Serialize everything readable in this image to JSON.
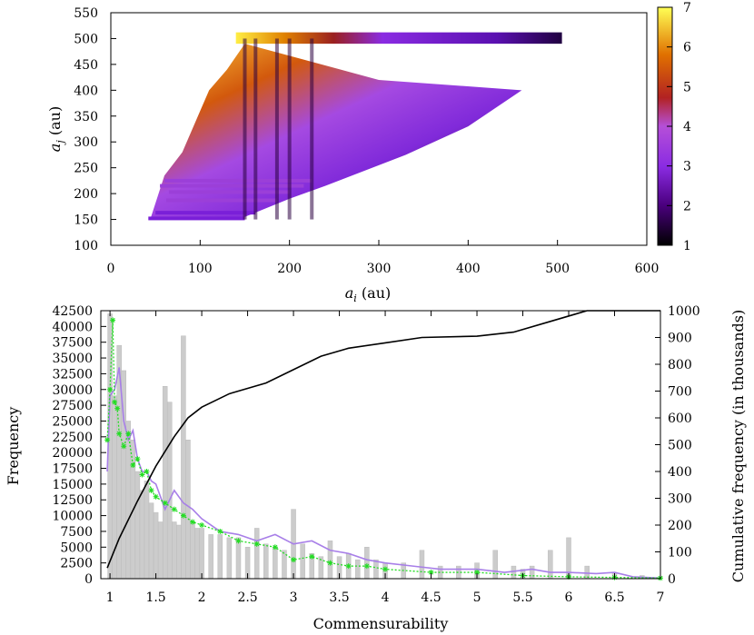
{
  "chart_data": [
    {
      "type": "scatter",
      "title": "",
      "xlabel_main": "a",
      "xlabel_sub": "i",
      "xlabel_unit": " (au)",
      "ylabel_main": "a",
      "ylabel_sub": "j",
      "ylabel_unit": " (au)",
      "xlim": [
        0,
        600
      ],
      "ylim": [
        100,
        550
      ],
      "xticks": [
        0,
        100,
        200,
        300,
        400,
        500,
        600
      ],
      "yticks": [
        100,
        150,
        200,
        250,
        300,
        350,
        400,
        450,
        500,
        550
      ],
      "colorbar": {
        "range": [
          1,
          7
        ],
        "ticks": [
          1,
          2,
          3,
          4,
          5,
          6,
          7
        ]
      },
      "description_regions": {
        "top_band": {
          "a_j": 505,
          "a_i_range": [
            140,
            505
          ]
        },
        "horizontal_bands_a_j": [
          152,
          163,
          187,
          203,
          215,
          225
        ],
        "vertical_stripes_a_i": [
          150,
          162,
          186,
          200,
          225
        ]
      }
    },
    {
      "type": "bar",
      "xlabel": "Commensurability",
      "ylabel": "Frequency",
      "y2label": "Cumulative frequency (in thousands)",
      "xlim": [
        0.9,
        7
      ],
      "ylim": [
        0,
        42500
      ],
      "y2lim": [
        0,
        1000
      ],
      "xticks": [
        "1",
        "1.5",
        "2",
        "2.5",
        "3",
        "3.5",
        "4",
        "4.5",
        "5",
        "5.5",
        "6",
        "6.5",
        "7"
      ],
      "yticks": [
        "0",
        "2500",
        "5000",
        "7500",
        "10000",
        "12500",
        "15000",
        "17500",
        "20000",
        "22500",
        "25000",
        "27500",
        "30000",
        "32500",
        "35000",
        "37500",
        "40000",
        "42500"
      ],
      "y2ticks": [
        "0",
        "100",
        "200",
        "300",
        "400",
        "500",
        "600",
        "700",
        "800",
        "900",
        "1000"
      ],
      "series": [
        {
          "name": "histogram",
          "color": "#cccccc",
          "x": [
            1.0,
            1.05,
            1.1,
            1.15,
            1.2,
            1.25,
            1.3,
            1.35,
            1.4,
            1.45,
            1.5,
            1.55,
            1.6,
            1.65,
            1.7,
            1.75,
            1.8,
            1.85,
            1.9,
            1.95,
            2.0,
            2.1,
            2.2,
            2.3,
            2.4,
            2.5,
            2.6,
            2.7,
            2.8,
            2.9,
            3.0,
            3.1,
            3.2,
            3.3,
            3.4,
            3.5,
            3.6,
            3.7,
            3.8,
            3.9,
            4.0,
            4.2,
            4.4,
            4.6,
            4.8,
            5.0,
            5.2,
            5.4,
            5.5,
            5.6,
            5.8,
            6.0,
            6.2,
            6.5,
            6.8
          ],
          "values": [
            42000,
            29000,
            37000,
            33000,
            25000,
            22000,
            17000,
            14000,
            15500,
            12000,
            10500,
            9000,
            30500,
            28000,
            9000,
            8500,
            38500,
            22000,
            9000,
            8000,
            8000,
            7000,
            7000,
            6500,
            6500,
            5000,
            8000,
            5500,
            5000,
            4500,
            11000,
            5500,
            4000,
            3500,
            6000,
            3500,
            4000,
            3000,
            5000,
            3000,
            2500,
            2500,
            4500,
            2000,
            2000,
            2500,
            4500,
            2000,
            1500,
            2000,
            4500,
            6500,
            2000,
            1000,
            500
          ]
        },
        {
          "name": "purple",
          "color": "#a87fe8",
          "x": [
            0.97,
            1.0,
            1.05,
            1.1,
            1.15,
            1.2,
            1.25,
            1.3,
            1.35,
            1.4,
            1.45,
            1.5,
            1.6,
            1.7,
            1.8,
            1.9,
            2.0,
            2.2,
            2.4,
            2.6,
            2.8,
            3.0,
            3.2,
            3.4,
            3.6,
            3.8,
            4.0,
            4.3,
            4.6,
            5.0,
            5.3,
            5.6,
            5.8,
            6.0,
            6.3,
            6.5,
            6.7,
            7.0
          ],
          "values": [
            17000,
            29000,
            30000,
            33500,
            25000,
            22000,
            23500,
            19000,
            17000,
            17000,
            15500,
            15000,
            11000,
            14000,
            12000,
            11000,
            9500,
            7500,
            7000,
            6000,
            7000,
            5500,
            6000,
            4500,
            4000,
            3000,
            2500,
            2000,
            1500,
            1500,
            1000,
            1500,
            1000,
            1000,
            800,
            1000,
            300,
            100
          ]
        },
        {
          "name": "green",
          "color": "#22dd22",
          "x": [
            0.97,
            1.0,
            1.03,
            1.05,
            1.08,
            1.1,
            1.15,
            1.2,
            1.25,
            1.3,
            1.35,
            1.4,
            1.45,
            1.5,
            1.6,
            1.7,
            1.8,
            1.9,
            2.0,
            2.2,
            2.4,
            2.6,
            2.8,
            3.0,
            3.2,
            3.4,
            3.6,
            3.8,
            4.0,
            4.5,
            5.0,
            5.5,
            6.0,
            6.5,
            7.0
          ],
          "values": [
            22000,
            30000,
            41000,
            28000,
            27000,
            23000,
            21000,
            23000,
            18000,
            19000,
            16500,
            17000,
            14000,
            13000,
            12000,
            11000,
            10000,
            9000,
            8500,
            7500,
            6000,
            5500,
            5000,
            3000,
            3500,
            2500,
            2000,
            2000,
            1500,
            1000,
            1000,
            500,
            300,
            200,
            100
          ]
        },
        {
          "name": "cumulative",
          "color": "#000000",
          "axis": "y2",
          "x": [
            0.97,
            1.1,
            1.3,
            1.5,
            1.7,
            1.85,
            2.0,
            2.3,
            2.7,
            3.0,
            3.3,
            3.6,
            4.0,
            4.4,
            5.0,
            5.4,
            5.8,
            6.1,
            6.2,
            7.0
          ],
          "values": [
            40,
            150,
            290,
            420,
            530,
            600,
            640,
            690,
            730,
            780,
            830,
            860,
            880,
            900,
            905,
            920,
            960,
            990,
            1000,
            1000
          ]
        }
      ]
    }
  ]
}
